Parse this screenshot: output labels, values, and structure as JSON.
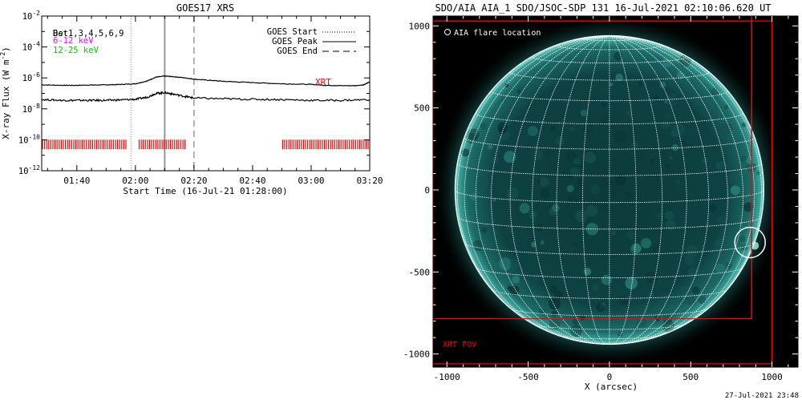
{
  "chart_data": [
    {
      "type": "line",
      "title": "GOES17 XRS",
      "xlabel": "Start Time (16-Jul-21 01:28:00)",
      "ylabel_text": "X-ray Flux (W m",
      "ylabel_sup": "-2",
      "ylabel_close": ")",
      "x_tick_labels": [
        "01:40",
        "02:00",
        "02:20",
        "02:40",
        "03:00",
        "03:20"
      ],
      "x_tick_values": [
        100,
        120,
        140,
        160,
        180,
        200
      ],
      "xlim": [
        88,
        200
      ],
      "y_tick_labels": [
        {
          "base": "10",
          "exp": "-2",
          "value": -2
        },
        {
          "base": "10",
          "exp": "-4",
          "value": -4
        },
        {
          "base": "10",
          "exp": "-6",
          "value": -6
        },
        {
          "base": "10",
          "exp": "-8",
          "value": -8
        },
        {
          "base": "10",
          "exp": "-10",
          "value": -10
        },
        {
          "base": "10",
          "exp": "-12",
          "value": -12
        }
      ],
      "ylim_log10": [
        -12,
        -2
      ],
      "y_scale": "log",
      "legend_left": [
        {
          "text": "Det1,3,4,5,6,9",
          "overprint": "Bst",
          "color": "#000000"
        },
        {
          "text": "6-12 keV",
          "color": "#ff00ff"
        },
        {
          "text": "12-25 keV",
          "color": "#00cc00"
        }
      ],
      "legend_right": [
        {
          "text": "GOES Start",
          "style": "dotted"
        },
        {
          "text": "GOES Peak",
          "style": "solid"
        },
        {
          "text": "GOES End",
          "style": "dashed"
        }
      ],
      "vertical_lines": {
        "goes_start": 118.5,
        "goes_peak": 130,
        "goes_end": 140
      },
      "series": [
        {
          "color": "#000000",
          "x": [
            88,
            95,
            100,
            105,
            110,
            115,
            120,
            124,
            127,
            130,
            133,
            137,
            140,
            145,
            150,
            160,
            170,
            180,
            185,
            190,
            195,
            198,
            200
          ],
          "log10_y": [
            -6.45,
            -6.48,
            -6.48,
            -6.46,
            -6.45,
            -6.42,
            -6.38,
            -6.2,
            -5.95,
            -5.88,
            -5.92,
            -6.0,
            -6.08,
            -6.15,
            -6.22,
            -6.3,
            -6.38,
            -6.42,
            -6.48,
            -6.5,
            -6.5,
            -6.45,
            -6.25
          ]
        },
        {
          "color": "#000000",
          "x": [
            88,
            95,
            100,
            105,
            110,
            115,
            120,
            124,
            127,
            130,
            133,
            137,
            140,
            150,
            160,
            170,
            180,
            190,
            200
          ],
          "log10_y": [
            -7.4,
            -7.45,
            -7.45,
            -7.45,
            -7.45,
            -7.42,
            -7.38,
            -7.25,
            -7.0,
            -6.95,
            -7.05,
            -7.2,
            -7.3,
            -7.35,
            -7.38,
            -7.4,
            -7.45,
            -7.45,
            -7.4
          ]
        }
      ],
      "xrt_label": {
        "text": "XRT",
        "color": "#ff0000"
      },
      "xrt_coverage": {
        "color": "#ff0000",
        "log10_y": -10.3,
        "intervals": [
          [
            88,
            117
          ],
          [
            121,
            137
          ],
          [
            170,
            200
          ]
        ]
      }
    },
    {
      "type": "image",
      "title": "SDO/AIA AIA_1 SDO/JSOC-SDP 131 16-Jul-2021 02:10:06.620 UT",
      "xlabel": "X (arcsec)",
      "x_tick_labels": [
        "-1000",
        "-500",
        "0",
        "500",
        "1000"
      ],
      "x_tick_values": [
        -1000,
        -500,
        0,
        500,
        1000
      ],
      "y_tick_labels": [
        "1000",
        "500",
        "0",
        "-500",
        "-1000"
      ],
      "y_tick_values": [
        1000,
        500,
        0,
        -500,
        -1000
      ],
      "xlim": [
        -1085,
        1160
      ],
      "ylim": [
        -1080,
        1060
      ],
      "solar_radius_arcsec": 950,
      "grid_spacing_deg": 10,
      "flare_marker_label": "AIA flare location",
      "flare_location_arcsec": [
        865,
        -320
      ],
      "xrt_fov_label": "XRT FOV",
      "xrt_fov_color": "#ff0000",
      "footer_timestamp": "27-Jul-2021 23:48"
    }
  ]
}
